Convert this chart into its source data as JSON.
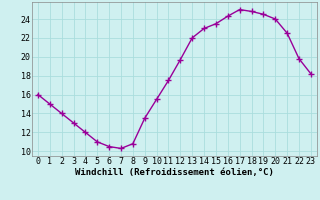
{
  "x": [
    0,
    1,
    2,
    3,
    4,
    5,
    6,
    7,
    8,
    9,
    10,
    11,
    12,
    13,
    14,
    15,
    16,
    17,
    18,
    19,
    20,
    21,
    22,
    23
  ],
  "y": [
    16,
    15,
    14,
    13,
    12,
    11,
    10.5,
    10.3,
    10.8,
    13.5,
    15.5,
    17.5,
    19.7,
    22,
    23,
    23.5,
    24.3,
    25,
    24.8,
    24.5,
    24,
    22.5,
    19.8,
    18.2
  ],
  "line_color": "#990099",
  "marker": "+",
  "marker_size": 4,
  "bg_color": "#cff0f0",
  "grid_color": "#aadddd",
  "xlabel": "Windchill (Refroidissement éolien,°C)",
  "xlim": [
    -0.5,
    23.5
  ],
  "ylim": [
    9.5,
    25.8
  ],
  "yticks": [
    10,
    12,
    14,
    16,
    18,
    20,
    22,
    24
  ],
  "xticks": [
    0,
    1,
    2,
    3,
    4,
    5,
    6,
    7,
    8,
    9,
    10,
    11,
    12,
    13,
    14,
    15,
    16,
    17,
    18,
    19,
    20,
    21,
    22,
    23
  ],
  "xlabel_fontsize": 6.5,
  "tick_fontsize": 6.0,
  "linewidth": 1.0
}
